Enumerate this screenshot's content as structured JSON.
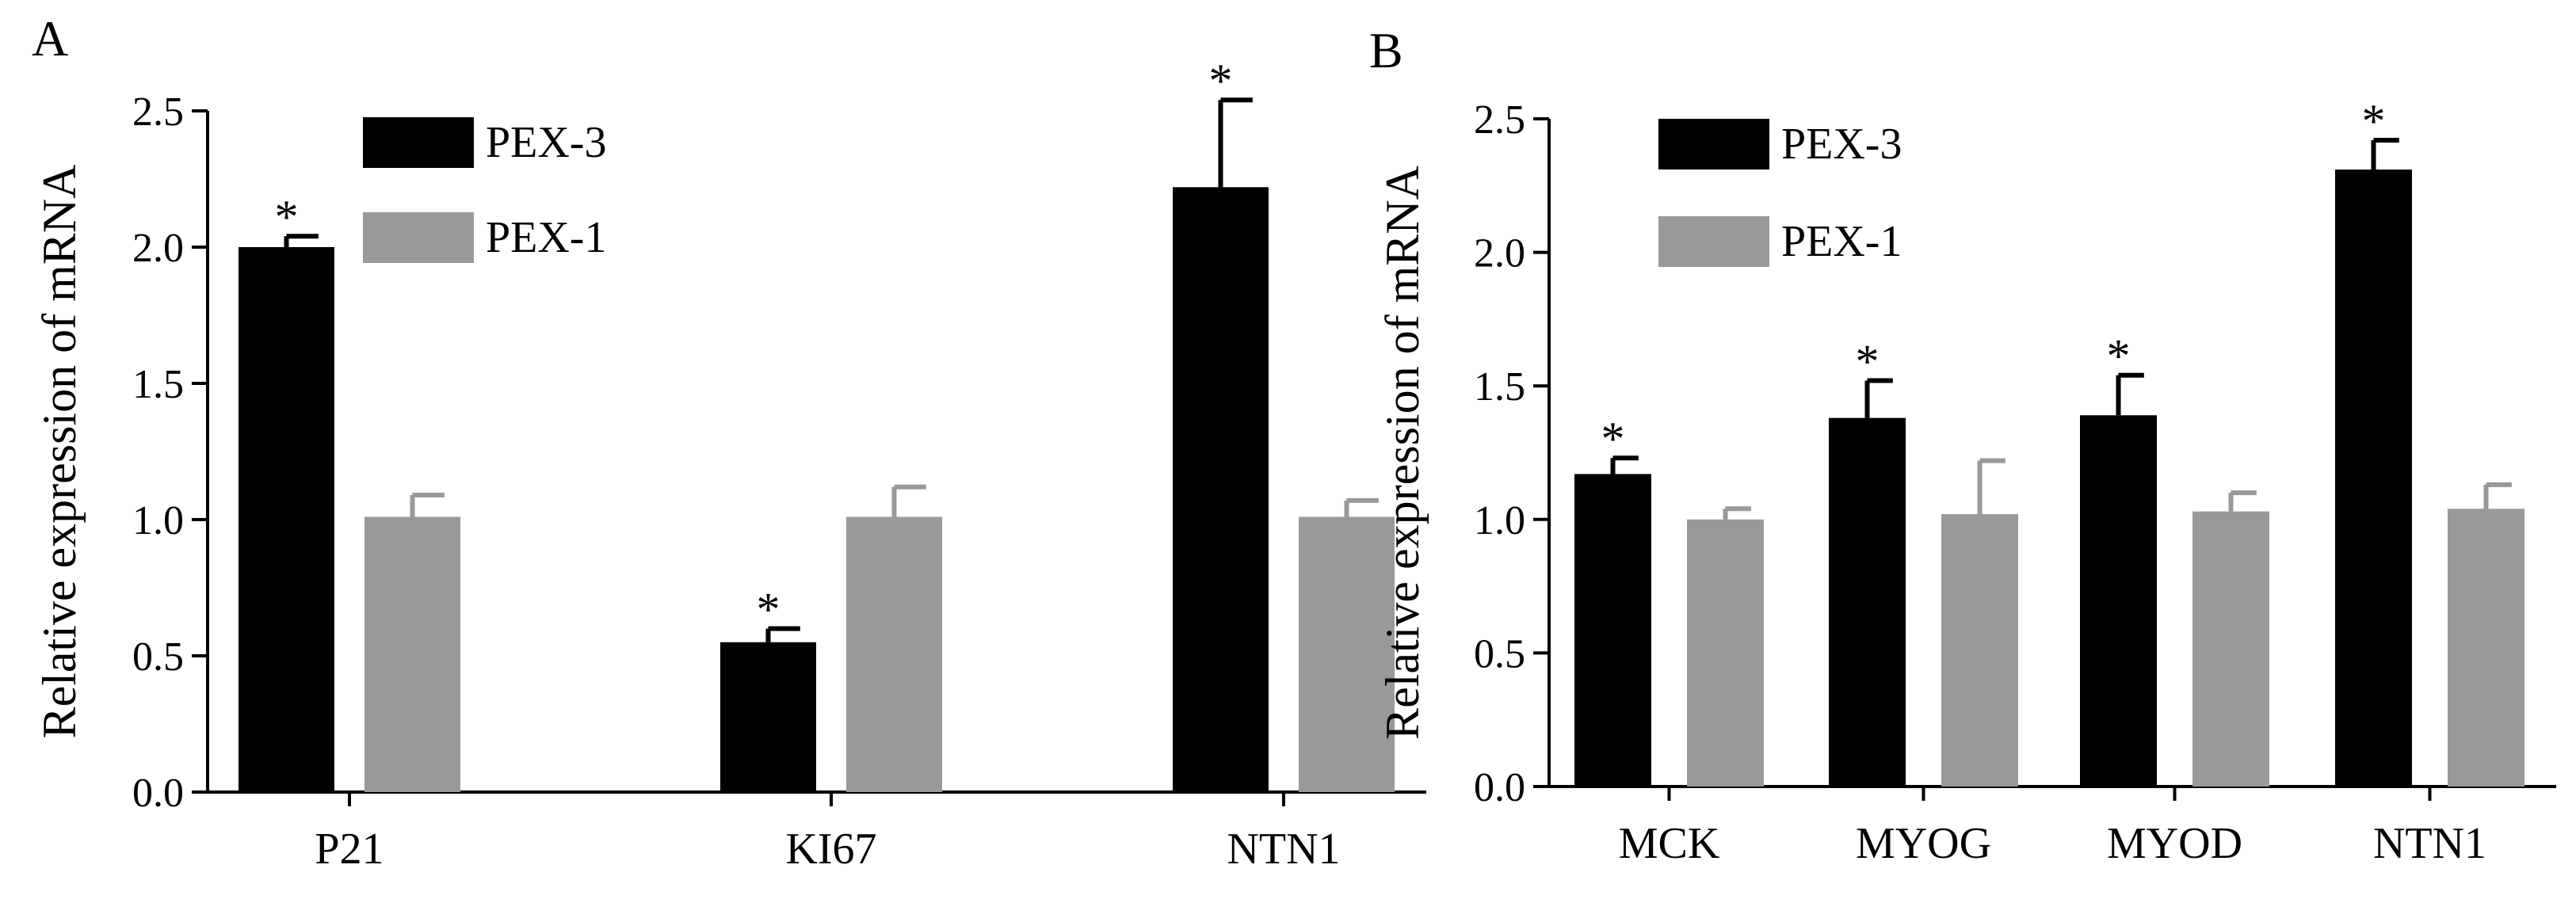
{
  "chart_data": [
    {
      "panel": "A",
      "type": "bar",
      "ylabel": "Relative  expression of mRNA",
      "ylim": [
        0,
        2.5
      ],
      "yticks": [
        "0.0",
        "0.5",
        "1.0",
        "1.5",
        "2.0",
        "2.5"
      ],
      "categories": [
        "P21",
        "KI67",
        "NTN1"
      ],
      "legend_position": "top-left",
      "series": [
        {
          "name": "PEX-3",
          "color": "#000000",
          "values": [
            2.0,
            0.55,
            2.22
          ],
          "errors": [
            0.04,
            0.05,
            0.32
          ],
          "significance": [
            "*",
            "*",
            "*"
          ]
        },
        {
          "name": "PEX-1",
          "color": "#999999",
          "values": [
            1.01,
            1.01,
            1.01
          ],
          "errors": [
            0.08,
            0.11,
            0.06
          ],
          "significance": [
            "",
            "",
            ""
          ]
        }
      ]
    },
    {
      "panel": "B",
      "type": "bar",
      "ylabel": "Relative  expression of mRNA",
      "ylim": [
        0,
        2.5
      ],
      "yticks": [
        "0.0",
        "0.5",
        "1.0",
        "1.5",
        "2.0",
        "2.5"
      ],
      "categories": [
        "MCK",
        "MYOG",
        "MYOD",
        "NTN1"
      ],
      "legend_position": "top-left",
      "series": [
        {
          "name": "PEX-3",
          "color": "#000000",
          "values": [
            1.17,
            1.38,
            1.39,
            2.31
          ],
          "errors": [
            0.06,
            0.14,
            0.15,
            0.11
          ],
          "significance": [
            "*",
            "*",
            "*",
            "*"
          ]
        },
        {
          "name": "PEX-1",
          "color": "#999999",
          "values": [
            1.0,
            1.02,
            1.03,
            1.04
          ],
          "errors": [
            0.04,
            0.2,
            0.07,
            0.09
          ],
          "significance": [
            "",
            "",
            "",
            ""
          ]
        }
      ]
    }
  ]
}
